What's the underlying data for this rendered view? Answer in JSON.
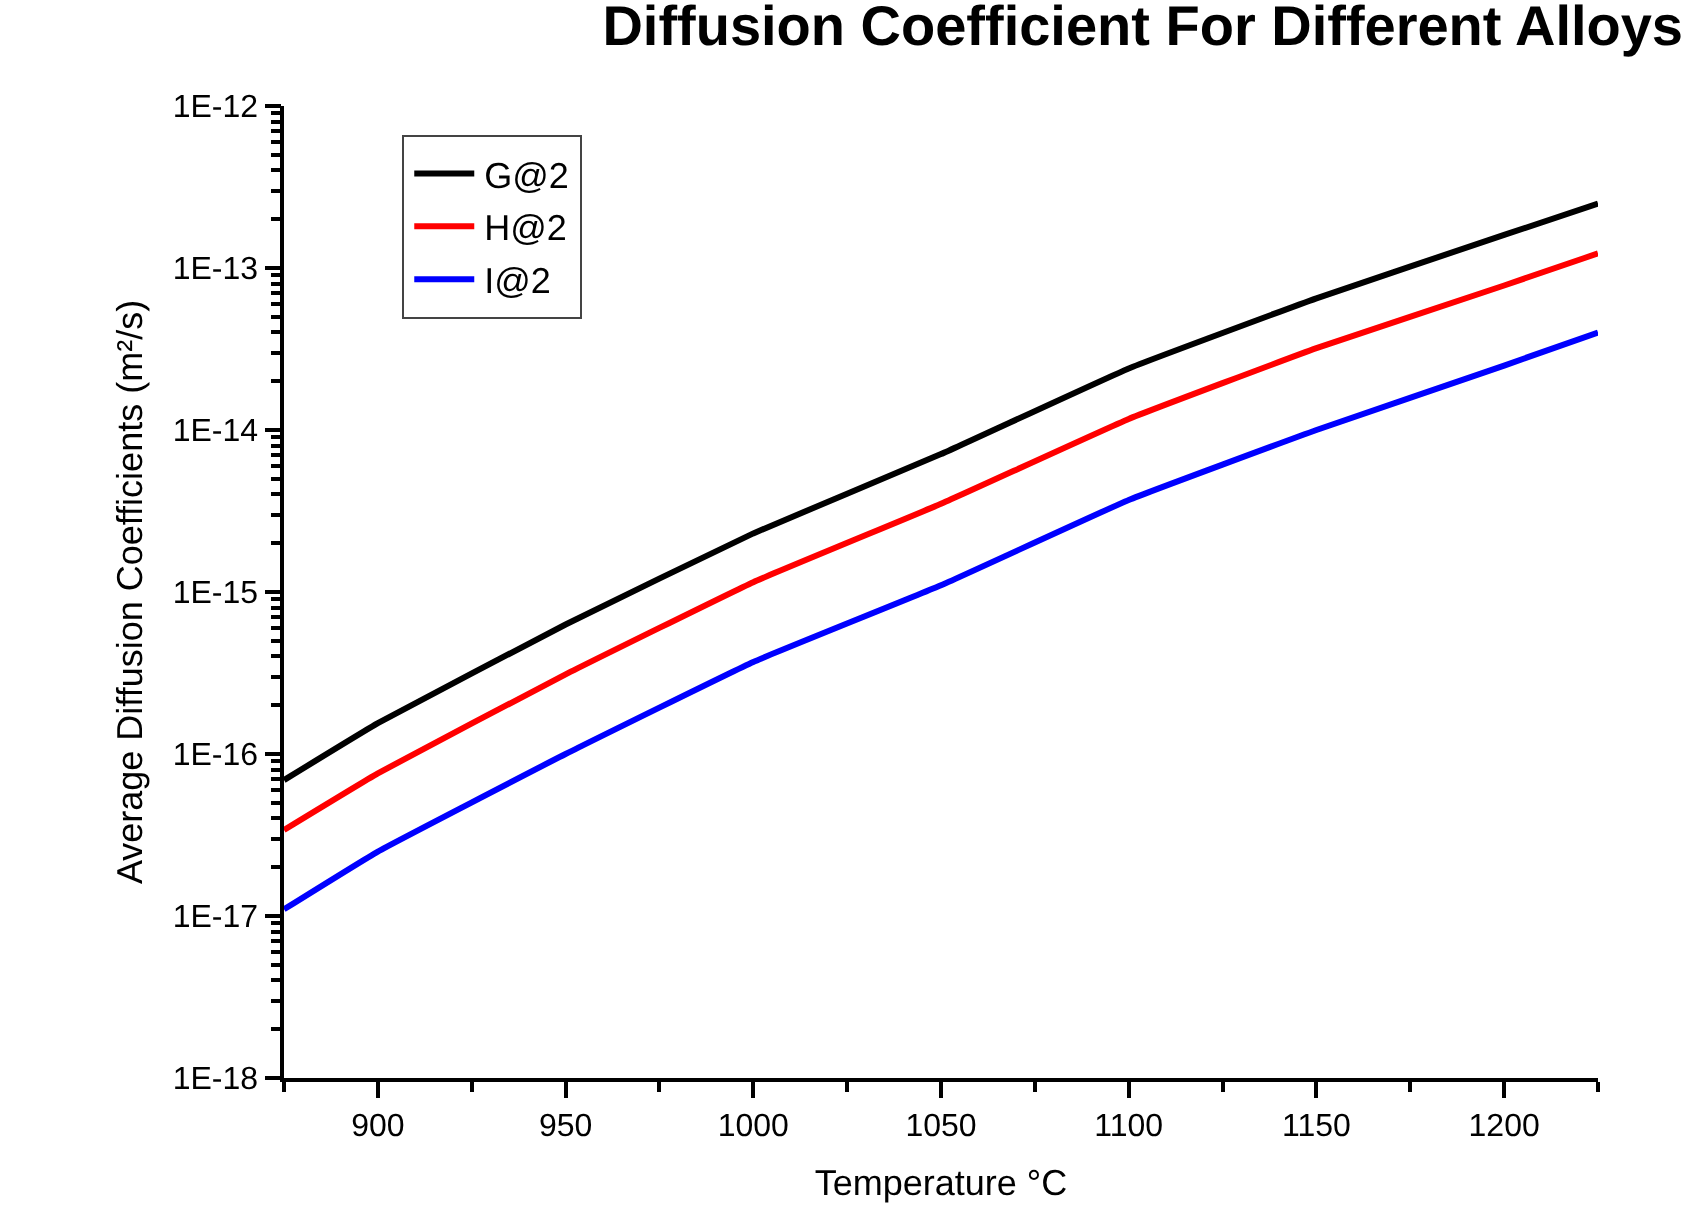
{
  "chart_data": {
    "type": "line",
    "title": "Diffusion Coefficient For Different Alloys",
    "xlabel": "Temperature °C",
    "ylabel": "Average Diffusion Coefficients (m²/s)",
    "x": [
      875,
      900,
      950,
      1000,
      1050,
      1100,
      1150,
      1200,
      1225
    ],
    "series": [
      {
        "name": "G@2",
        "color": "#000000",
        "values": [
          6.9e-17,
          1.55e-16,
          6.3e-16,
          2.3e-15,
          7.1e-15,
          2.4e-14,
          6.5e-14,
          1.6e-13,
          2.5e-13
        ]
      },
      {
        "name": "H@2",
        "color": "#ff0000",
        "values": [
          3.4e-17,
          7.6e-17,
          3.1e-16,
          1.15e-15,
          3.5e-15,
          1.17e-14,
          3.2e-14,
          7.8e-14,
          1.23e-13
        ]
      },
      {
        "name": "I@2",
        "color": "#0000ff",
        "values": [
          1.1e-17,
          2.5e-17,
          1e-16,
          3.7e-16,
          1.1e-15,
          3.7e-15,
          1e-14,
          2.5e-14,
          4e-14
        ]
      }
    ],
    "log": "y",
    "xlim": [
      875,
      1225
    ],
    "xticks": [
      900,
      950,
      1000,
      1050,
      1100,
      1150,
      1200
    ],
    "ylim": [
      1e-18,
      1e-12
    ],
    "yticks": [
      {
        "value": 1e-18,
        "label": "1E-18"
      },
      {
        "value": 1e-17,
        "label": "1E-17"
      },
      {
        "value": 1e-16,
        "label": "1E-16"
      },
      {
        "value": 1e-15,
        "label": "1E-15"
      },
      {
        "value": 1e-14,
        "label": "1E-14"
      },
      {
        "value": 1e-13,
        "label": "1E-13"
      },
      {
        "value": 1e-12,
        "label": "1E-12"
      }
    ],
    "legend": "top left",
    "marker": "none",
    "line_style": "solid"
  }
}
